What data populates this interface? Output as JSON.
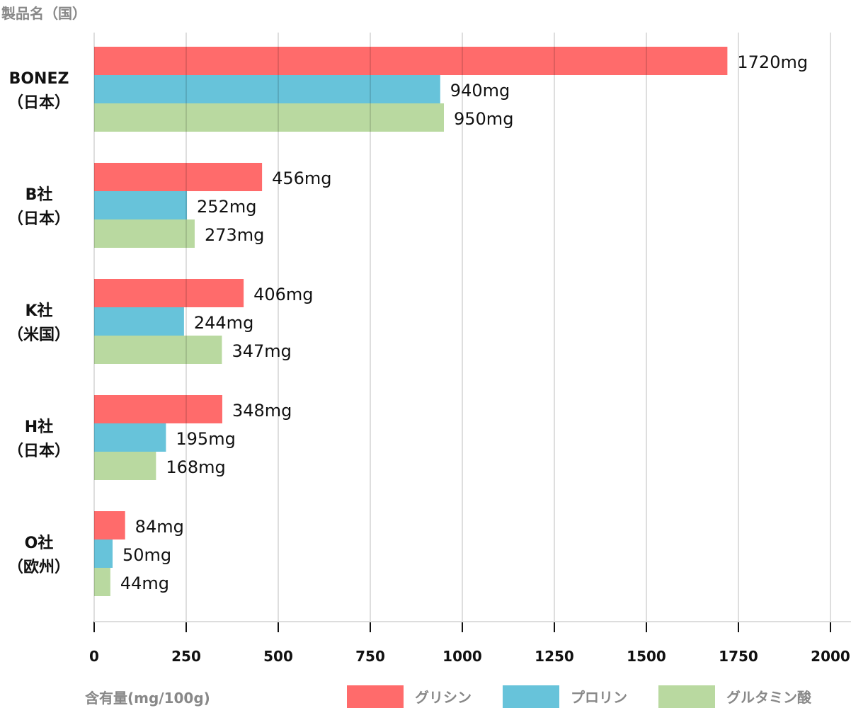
{
  "chart_data": {
    "type": "bar",
    "orientation": "horizontal",
    "ylabel": "製品名（国）",
    "xlabel": "含有量(mg/100g)",
    "categories": [
      {
        "name": "BONEZ",
        "country": "（日本）"
      },
      {
        "name": "B社",
        "country": "（日本）"
      },
      {
        "name": "K社",
        "country": "（米国）"
      },
      {
        "name": "H社",
        "country": "（日本）"
      },
      {
        "name": "O社",
        "country": "（欧州）"
      }
    ],
    "series": [
      {
        "name": "グリシン",
        "color": "#ff6b6b",
        "values": [
          1720,
          456,
          406,
          348,
          84
        ]
      },
      {
        "name": "プロリン",
        "color": "#67c3da",
        "values": [
          940,
          252,
          244,
          195,
          50
        ]
      },
      {
        "name": "グルタミン酸",
        "color": "#b9d9a0",
        "values": [
          950,
          273,
          347,
          168,
          44
        ]
      }
    ],
    "unit": "mg",
    "xlim": [
      0,
      2000
    ],
    "xticks": [
      "0",
      "250",
      "500",
      "750",
      "1000",
      "1250",
      "1500",
      "1750",
      "2000"
    ],
    "grid": true,
    "legend_position": "bottom-right"
  }
}
